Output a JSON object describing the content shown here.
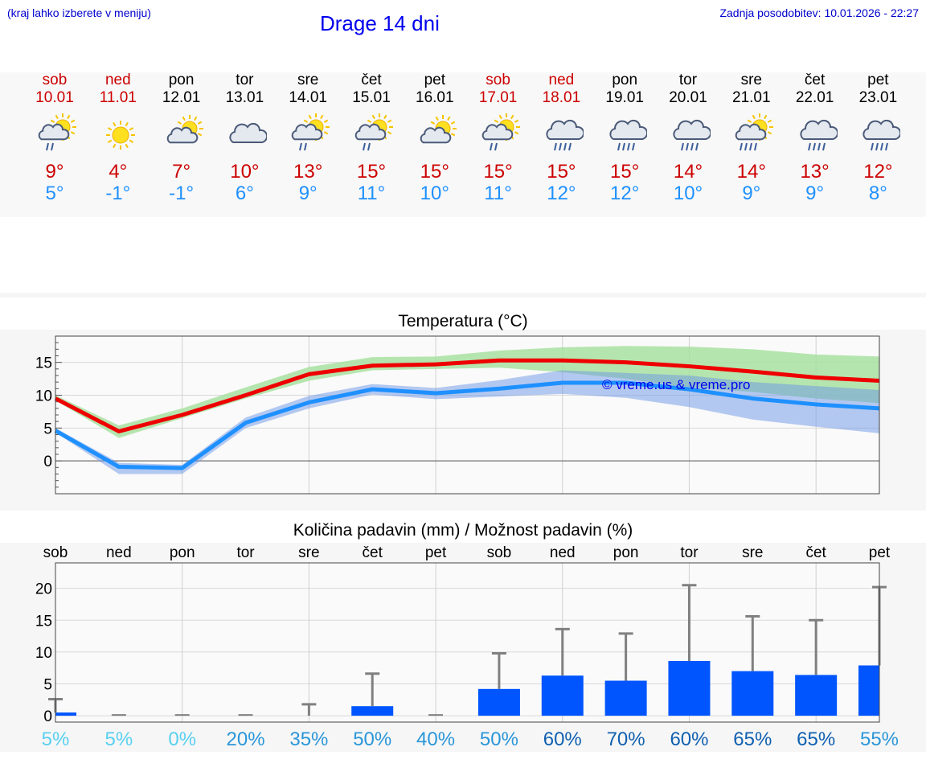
{
  "header": {
    "hint": "(kraj lahko izberete v meniju)",
    "title": "Drage 14 dni",
    "updated": "Zadnja posodobitev: 10.01.2026 - 22:27"
  },
  "days": [
    {
      "name": "sob",
      "date": "10.01",
      "weekend": true,
      "icon": "sun-cloud-light-rain-icon",
      "tmax": "9°",
      "tmin": "5°"
    },
    {
      "name": "ned",
      "date": "11.01",
      "weekend": true,
      "icon": "sun-icon",
      "tmax": "4°",
      "tmin": "-1°"
    },
    {
      "name": "pon",
      "date": "12.01",
      "weekend": false,
      "icon": "sun-cloud-icon",
      "tmax": "7°",
      "tmin": "-1°"
    },
    {
      "name": "tor",
      "date": "13.01",
      "weekend": false,
      "icon": "cloud-icon",
      "tmax": "10°",
      "tmin": "6°"
    },
    {
      "name": "sre",
      "date": "14.01",
      "weekend": false,
      "icon": "sun-cloud-light-rain-icon",
      "tmax": "13°",
      "tmin": "9°"
    },
    {
      "name": "čet",
      "date": "15.01",
      "weekend": false,
      "icon": "sun-cloud-light-rain-icon",
      "tmax": "15°",
      "tmin": "11°"
    },
    {
      "name": "pet",
      "date": "16.01",
      "weekend": false,
      "icon": "sun-cloud-icon",
      "tmax": "15°",
      "tmin": "10°"
    },
    {
      "name": "sob",
      "date": "17.01",
      "weekend": true,
      "icon": "sun-cloud-light-rain-icon",
      "tmax": "15°",
      "tmin": "11°"
    },
    {
      "name": "ned",
      "date": "18.01",
      "weekend": true,
      "icon": "cloud-rain-icon",
      "tmax": "15°",
      "tmin": "12°"
    },
    {
      "name": "pon",
      "date": "19.01",
      "weekend": false,
      "icon": "cloud-rain-icon",
      "tmax": "15°",
      "tmin": "12°"
    },
    {
      "name": "tor",
      "date": "20.01",
      "weekend": false,
      "icon": "cloud-rain-icon",
      "tmax": "14°",
      "tmin": "10°"
    },
    {
      "name": "sre",
      "date": "21.01",
      "weekend": false,
      "icon": "sun-cloud-rain-icon",
      "tmax": "14°",
      "tmin": "9°"
    },
    {
      "name": "čet",
      "date": "22.01",
      "weekend": false,
      "icon": "cloud-rain-icon",
      "tmax": "13°",
      "tmin": "9°"
    },
    {
      "name": "pet",
      "date": "23.01",
      "weekend": false,
      "icon": "cloud-rain-icon",
      "tmax": "12°",
      "tmin": "8°"
    }
  ],
  "colors": {
    "max": "#ee0000",
    "min": "#1e90ff",
    "maxBand": "#a8e0a0",
    "minBand": "#a8c4f0",
    "overlap": "#7cc0b0",
    "bar": "#0055ff",
    "err": "#808080"
  },
  "chart_data": [
    {
      "type": "line",
      "title": "Temperatura (°C)",
      "watermark": "© vreme.us & vreme.pro",
      "x": [
        0,
        1,
        2,
        3,
        4,
        5,
        6,
        7,
        8,
        9,
        10,
        11,
        12,
        13
      ],
      "ylim": [
        -5,
        19
      ],
      "yticks": [
        0,
        5,
        10,
        15
      ],
      "series": [
        {
          "name": "max",
          "values": [
            9.5,
            4.5,
            7,
            10,
            13.2,
            14.5,
            14.7,
            15.3,
            15.3,
            15,
            14.4,
            13.6,
            12.7,
            12.2
          ],
          "band_low": [
            9.2,
            3.5,
            6.5,
            9.5,
            12.2,
            13.8,
            14,
            14.2,
            13.5,
            12.5,
            11.2,
            10.5,
            9.5,
            8.8
          ],
          "band_high": [
            10,
            5.4,
            8,
            11.2,
            14.3,
            15.8,
            15.9,
            16.8,
            17.3,
            17.5,
            17.4,
            17,
            16.2,
            15.9
          ]
        },
        {
          "name": "min",
          "values": [
            4.6,
            -0.9,
            -1.1,
            5.8,
            8.9,
            10.9,
            10.3,
            11,
            11.9,
            11.9,
            10.9,
            9.5,
            8.6,
            8
          ],
          "band_low": [
            4.3,
            -2,
            -2,
            5,
            8,
            10.1,
            9.4,
            9.8,
            10.2,
            9.6,
            8.2,
            6.3,
            5.2,
            4.2
          ],
          "band_high": [
            5,
            -0.3,
            -0.6,
            6.6,
            9.9,
            11.7,
            11.1,
            12.3,
            13.8,
            13.4,
            13,
            12,
            11.4,
            10.8
          ]
        }
      ]
    },
    {
      "type": "bar",
      "title": "Količina padavin (mm) / Možnost padavin (%)",
      "categories": [
        "sob",
        "ned",
        "pon",
        "tor",
        "sre",
        "čet",
        "pet",
        "sob",
        "ned",
        "pon",
        "tor",
        "sre",
        "čet",
        "pet"
      ],
      "ylim": [
        -1,
        24
      ],
      "yticks": [
        0,
        5,
        10,
        15,
        20
      ],
      "values": [
        0.5,
        0,
        0,
        0,
        0,
        1.5,
        0,
        4.2,
        6.3,
        5.5,
        8.6,
        7,
        6.4,
        7.9
      ],
      "error_high": [
        2.6,
        0,
        0,
        0,
        1.8,
        6.6,
        0,
        9.8,
        13.6,
        12.9,
        20.5,
        15.6,
        15,
        20.2
      ],
      "probability": [
        "5%",
        "5%",
        "0%",
        "20%",
        "35%",
        "50%",
        "40%",
        "50%",
        "60%",
        "70%",
        "60%",
        "65%",
        "65%",
        "55%"
      ]
    }
  ]
}
